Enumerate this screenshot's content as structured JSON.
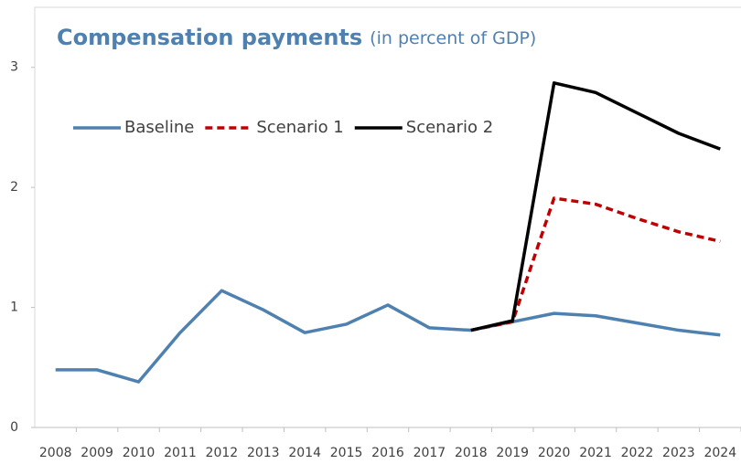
{
  "chart_data": {
    "type": "line",
    "title": "Compensation payments",
    "subtitle": "(in percent of GDP)",
    "categories": [
      "2008",
      "2009",
      "2010",
      "2011",
      "2012",
      "2013",
      "2014",
      "2015",
      "2016",
      "2017",
      "2018",
      "2019",
      "2020",
      "2021",
      "2022",
      "2023",
      "2024"
    ],
    "series": [
      {
        "name": "Baseline",
        "color": "#4f81b0",
        "dashed": false,
        "values": [
          0.48,
          0.48,
          0.38,
          0.79,
          1.14,
          0.98,
          0.79,
          0.86,
          1.02,
          0.83,
          0.81,
          0.88,
          0.95,
          0.93,
          0.87,
          0.81,
          0.77
        ]
      },
      {
        "name": "Scenario 1",
        "color": "#c00000",
        "dashed": true,
        "values": [
          null,
          null,
          null,
          null,
          null,
          null,
          null,
          null,
          null,
          null,
          0.81,
          0.88,
          1.91,
          1.86,
          1.74,
          1.63,
          1.55
        ]
      },
      {
        "name": "Scenario 2",
        "color": "#000000",
        "dashed": false,
        "values": [
          null,
          null,
          null,
          null,
          null,
          null,
          null,
          null,
          null,
          null,
          0.81,
          0.89,
          2.87,
          2.79,
          2.62,
          2.45,
          2.32
        ]
      }
    ],
    "ylim": [
      0,
      3.5
    ],
    "yticks": [
      0,
      1,
      2,
      3
    ],
    "grid": false,
    "legend": "top-left"
  }
}
